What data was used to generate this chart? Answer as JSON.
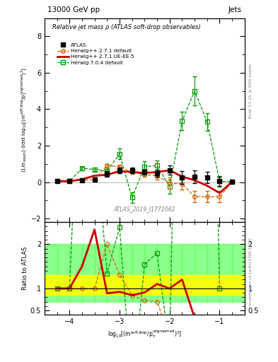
{
  "title_top": "13000 GeV pp",
  "title_right": "Jets",
  "plot_title": "Relative jet mass ρ (ATLAS soft-drop observables)",
  "watermark": "ATLAS_2019_I1772062",
  "right_label_top": "Rivet 3.1.10, ≥ 400k events",
  "right_label_bot": "mcplots.cern.ch [arXiv:1306.3436]",
  "xlabel": "log$_{10}$[(m$^{\\mathrm{soft\\,drop}}$/p$_{\\mathrm{T}}^{\\mathrm{ungroomed}}$)$^{2}$]",
  "ylabel_main": "(1/σ$_{\\mathrm{resum}}$) dσ/d log$_{10}$[(m$^{\\mathrm{soft\\,drop}}$/p$_\\mathrm{T}^{\\mathrm{ungroomed}}$)$^{2}$]",
  "ylabel_ratio": "Ratio to ATLAS",
  "xlim": [
    -4.5,
    -0.5
  ],
  "ylim_main": [
    -2.2,
    9.0
  ],
  "ylim_ratio": [
    0.4,
    2.5
  ],
  "x_ticks": [
    -4,
    -3,
    -2,
    -1
  ],
  "atlas_x": [
    -4.25,
    -4.0,
    -3.75,
    -3.5,
    -3.25,
    -3.0,
    -2.75,
    -2.5,
    -2.25,
    -2.0,
    -1.75,
    -1.5,
    -1.25,
    -1.0,
    -0.75
  ],
  "atlas_y": [
    0.05,
    0.05,
    0.1,
    0.15,
    0.45,
    0.65,
    0.65,
    0.55,
    0.5,
    0.65,
    0.25,
    0.3,
    0.25,
    0.05,
    0.02
  ],
  "atlas_yerr": [
    0.05,
    0.05,
    0.08,
    0.1,
    0.15,
    0.15,
    0.15,
    0.15,
    0.2,
    0.25,
    0.35,
    0.35,
    0.3,
    0.25,
    0.05
  ],
  "herwig271_x": [
    -4.25,
    -4.0,
    -3.75,
    -3.5,
    -3.25,
    -3.0,
    -2.75,
    -2.5,
    -2.25,
    -2.0,
    -1.75,
    -1.5,
    -1.25,
    -1.0,
    -0.75
  ],
  "herwig271_y": [
    0.05,
    0.05,
    0.1,
    0.15,
    0.9,
    0.85,
    0.55,
    0.4,
    0.35,
    -0.05,
    -0.1,
    -0.8,
    -0.8,
    -0.8,
    0.02
  ],
  "herwig271_yerr": [
    0.02,
    0.02,
    0.05,
    0.05,
    0.1,
    0.1,
    0.1,
    0.1,
    0.2,
    0.3,
    0.3,
    0.3,
    0.3,
    0.3,
    0.05
  ],
  "herwig271ue_x": [
    -4.25,
    -4.0,
    -3.75,
    -3.5,
    -3.25,
    -3.0,
    -2.75,
    -2.5,
    -2.25,
    -2.0,
    -1.75,
    -1.5,
    -1.25,
    -1.0,
    -0.75
  ],
  "herwig271ue_y": [
    0.05,
    0.05,
    0.15,
    0.35,
    0.4,
    0.6,
    0.55,
    0.5,
    0.55,
    0.65,
    0.3,
    0.1,
    -0.2,
    -0.6,
    0.02
  ],
  "herwig704_x": [
    -4.25,
    -4.0,
    -3.75,
    -3.5,
    -3.25,
    -3.0,
    -2.75,
    -2.5,
    -2.25,
    -2.0,
    -1.75,
    -1.5,
    -1.25,
    -1.0,
    -0.75
  ],
  "herwig704_y": [
    0.05,
    0.05,
    0.75,
    0.7,
    0.6,
    1.55,
    -0.85,
    0.85,
    0.9,
    -0.25,
    3.35,
    5.0,
    3.3,
    0.05,
    0.02
  ],
  "herwig704_yerr": [
    0.02,
    0.02,
    0.1,
    0.1,
    0.2,
    0.3,
    0.3,
    0.3,
    0.3,
    0.4,
    0.5,
    0.8,
    0.5,
    0.3,
    0.05
  ],
  "band_edges": [
    -4.5,
    -4.25,
    -4.0,
    -3.75,
    -3.5,
    -3.25,
    -3.0,
    -2.75,
    -2.5,
    -2.25,
    -2.0,
    -1.75,
    -1.5,
    -1.25,
    -1.0,
    -0.75,
    -0.5
  ],
  "band_green_lo": [
    0.7,
    0.7,
    0.7,
    0.7,
    0.7,
    0.7,
    0.7,
    0.7,
    0.7,
    0.7,
    0.7,
    0.7,
    0.7,
    0.7,
    0.7,
    0.7,
    0.7
  ],
  "band_green_hi": [
    2.0,
    2.0,
    2.0,
    2.0,
    2.0,
    2.0,
    2.0,
    2.0,
    2.0,
    2.0,
    2.0,
    2.0,
    2.0,
    2.0,
    2.0,
    2.0,
    2.0
  ],
  "band_yellow_lo": [
    0.85,
    0.85,
    0.85,
    0.85,
    0.85,
    0.85,
    0.85,
    0.85,
    0.85,
    0.85,
    0.85,
    0.85,
    0.85,
    0.85,
    0.85,
    0.85,
    0.85
  ],
  "band_yellow_hi": [
    1.3,
    1.3,
    1.3,
    1.3,
    1.3,
    1.3,
    1.3,
    1.3,
    1.3,
    1.3,
    1.3,
    1.3,
    1.3,
    1.3,
    1.3,
    1.3,
    1.3
  ],
  "color_atlas": "#000000",
  "color_herwig271": "#cc6600",
  "color_herwig271ue": "#cc0000",
  "color_herwig704": "#009900",
  "color_band_yellow": "#ffff00",
  "color_band_green": "#66ff66",
  "legend_labels": [
    "ATLAS",
    "Herwig++ 2.7.1 default",
    "Herwig++ 2.7.1 UE-EE-5",
    "Herwig 7.0.4 default"
  ]
}
